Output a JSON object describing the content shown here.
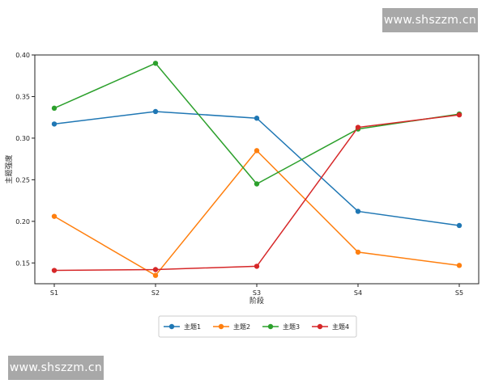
{
  "watermarks": {
    "top_right": "www.shszzm.cn",
    "bottom_left": "www.shszzm.cn"
  },
  "chart_data": {
    "type": "line",
    "title": "",
    "xlabel": "阶段",
    "ylabel": "主题强度",
    "categories": [
      "S1",
      "S2",
      "S3",
      "S4",
      "S5"
    ],
    "ylim": [
      0.125,
      0.4
    ],
    "yticks": [
      "0.15",
      "0.20",
      "0.25",
      "0.30",
      "0.35",
      "0.40"
    ],
    "grid": false,
    "legend_position": "bottom-center",
    "series": [
      {
        "name": "主题1",
        "color": "#1f77b4",
        "values": [
          0.317,
          0.332,
          0.324,
          0.212,
          0.195
        ]
      },
      {
        "name": "主题2",
        "color": "#ff7f0e",
        "values": [
          0.206,
          0.135,
          0.285,
          0.163,
          0.147
        ]
      },
      {
        "name": "主题3",
        "color": "#2ca02c",
        "values": [
          0.336,
          0.39,
          0.245,
          0.311,
          0.329
        ]
      },
      {
        "name": "主题4",
        "color": "#d62728",
        "values": [
          0.141,
          0.142,
          0.146,
          0.313,
          0.328
        ]
      }
    ]
  }
}
